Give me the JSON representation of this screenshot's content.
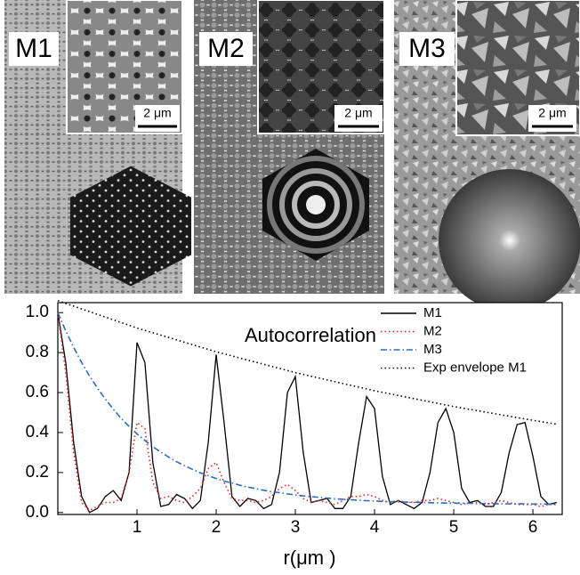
{
  "panels": [
    {
      "label": "M1",
      "scale_bar": "2 μm"
    },
    {
      "label": "M2",
      "scale_bar": "2 μm"
    },
    {
      "label": "M3",
      "scale_bar": "2 μm"
    }
  ],
  "chart_data": {
    "type": "line",
    "annotation": "Autocorrelation",
    "x_label": "r(μm )",
    "x": [
      0,
      0.1,
      0.2,
      0.3,
      0.4,
      0.5,
      0.6,
      0.7,
      0.8,
      0.9,
      1.0,
      1.1,
      1.2,
      1.3,
      1.4,
      1.5,
      1.6,
      1.7,
      1.8,
      1.9,
      2.0,
      2.1,
      2.2,
      2.3,
      2.4,
      2.5,
      2.6,
      2.7,
      2.8,
      2.9,
      3.0,
      3.1,
      3.2,
      3.3,
      3.4,
      3.5,
      3.6,
      3.7,
      3.8,
      3.9,
      4.0,
      4.1,
      4.2,
      4.3,
      4.4,
      4.5,
      4.6,
      4.7,
      4.8,
      4.9,
      5.0,
      5.1,
      5.2,
      5.3,
      5.4,
      5.5,
      5.6,
      5.7,
      5.8,
      5.9,
      6.0,
      6.1,
      6.2,
      6.3
    ],
    "series": [
      {
        "name": "M1",
        "color": "#000000",
        "style": "solid",
        "values": [
          1.0,
          0.75,
          0.35,
          0.08,
          0.0,
          0.02,
          0.08,
          0.11,
          0.06,
          0.2,
          0.85,
          0.75,
          0.25,
          0.03,
          0.04,
          0.09,
          0.07,
          0.02,
          0.06,
          0.35,
          0.79,
          0.45,
          0.08,
          0.03,
          0.07,
          0.06,
          0.02,
          0.04,
          0.2,
          0.6,
          0.68,
          0.3,
          0.05,
          0.06,
          0.07,
          0.02,
          0.02,
          0.08,
          0.35,
          0.58,
          0.52,
          0.18,
          0.04,
          0.06,
          0.04,
          0.02,
          0.05,
          0.2,
          0.45,
          0.52,
          0.4,
          0.12,
          0.05,
          0.06,
          0.03,
          0.03,
          0.1,
          0.3,
          0.44,
          0.45,
          0.28,
          0.08,
          0.04,
          0.05
        ]
      },
      {
        "name": "M2",
        "color": "#e8231f",
        "style": "dotted",
        "values": [
          1.0,
          0.7,
          0.3,
          0.05,
          0.01,
          0.03,
          0.05,
          0.05,
          0.07,
          0.2,
          0.45,
          0.42,
          0.15,
          0.07,
          0.08,
          0.06,
          0.05,
          0.08,
          0.12,
          0.22,
          0.25,
          0.15,
          0.07,
          0.06,
          0.06,
          0.05,
          0.06,
          0.08,
          0.12,
          0.14,
          0.11,
          0.07,
          0.05,
          0.06,
          0.05,
          0.04,
          0.06,
          0.08,
          0.08,
          0.09,
          0.08,
          0.06,
          0.05,
          0.06,
          0.05,
          0.05,
          0.06,
          0.06,
          0.07,
          0.06,
          0.05,
          0.04,
          0.05,
          0.05,
          0.04,
          0.05,
          0.06,
          0.05,
          0.04,
          0.04,
          0.04,
          0.03,
          0.04,
          0.04
        ]
      },
      {
        "name": "M3",
        "color": "#2a6fbf",
        "style": "dashdot",
        "values": [
          1.0,
          0.909,
          0.826,
          0.751,
          0.683,
          0.623,
          0.567,
          0.517,
          0.471,
          0.431,
          0.393,
          0.36,
          0.329,
          0.302,
          0.277,
          0.254,
          0.234,
          0.216,
          0.198,
          0.184,
          0.17,
          0.157,
          0.147,
          0.136,
          0.127,
          0.119,
          0.111,
          0.104,
          0.099,
          0.093,
          0.088,
          0.083,
          0.079,
          0.076,
          0.072,
          0.069,
          0.066,
          0.064,
          0.061,
          0.059,
          0.057,
          0.056,
          0.054,
          0.053,
          0.052,
          0.051,
          0.05,
          0.049,
          0.048,
          0.047,
          0.047,
          0.046,
          0.046,
          0.045,
          0.045,
          0.044,
          0.044,
          0.043,
          0.043,
          0.043,
          0.042,
          0.042,
          0.042,
          0.042
        ]
      },
      {
        "name": "Exp envelope M1",
        "color": "#000000",
        "style": "dotted",
        "x": [
          0,
          1,
          2,
          3,
          4,
          5,
          6,
          6.3
        ],
        "values": [
          1.06,
          0.923,
          0.804,
          0.7,
          0.609,
          0.53,
          0.461,
          0.442
        ]
      }
    ],
    "xlim": [
      0,
      6.37
    ],
    "xticks": [
      1,
      2,
      3,
      4,
      5,
      6
    ],
    "ylim": [
      -0.01,
      1.05
    ],
    "yticks": [
      {
        "value": 0,
        "label": "0.0"
      },
      0.2,
      0.4,
      0.6,
      0.8,
      {
        "value": 1,
        "label": "1.0"
      }
    ],
    "legend": "upper right"
  }
}
